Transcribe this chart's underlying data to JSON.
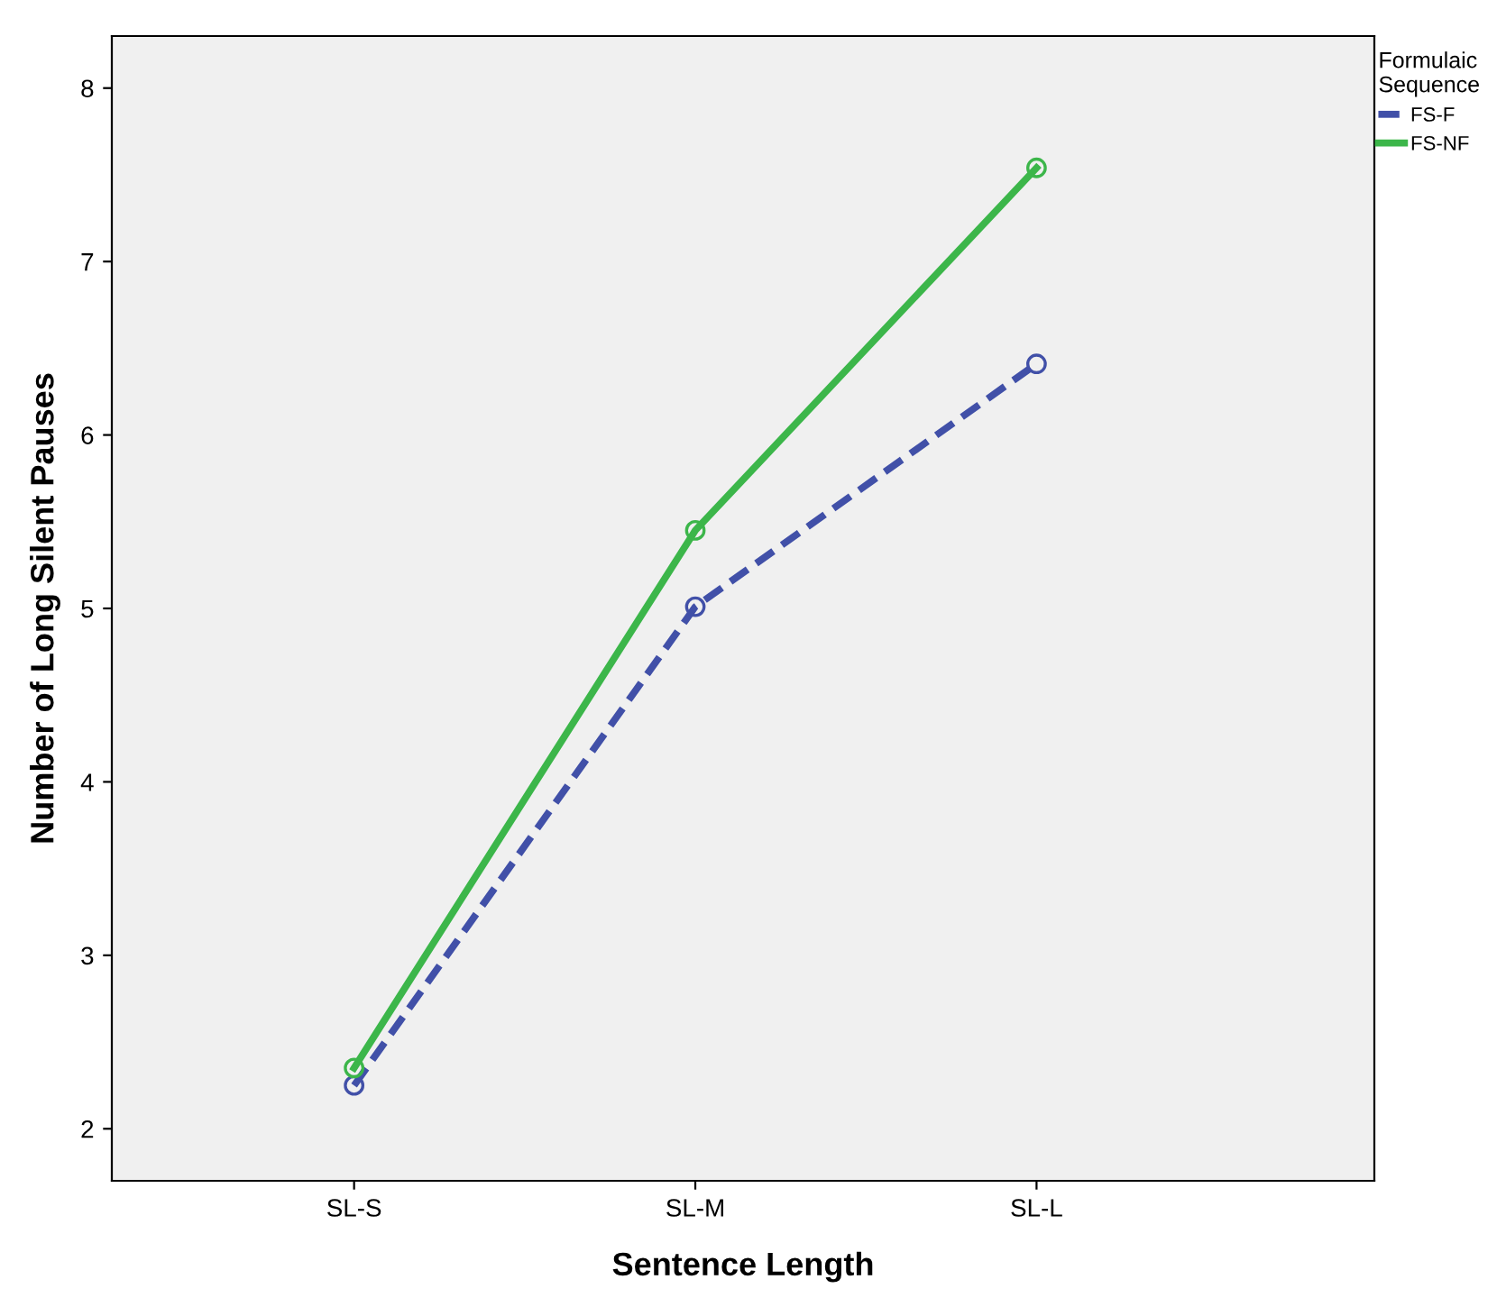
{
  "chart_data": {
    "type": "line",
    "xlabel": "Sentence Length",
    "ylabel": "Number of Long Silent Pauses",
    "legend_title": "Formulaic\nSequence",
    "categories": [
      "SL-S",
      "SL-M",
      "SL-L"
    ],
    "series": [
      {
        "name": "FS-F",
        "color": "#4150a8",
        "values": [
          2.25,
          5.01,
          6.41
        ],
        "line_style": "dashed"
      },
      {
        "name": "FS-NF",
        "color": "#3cb64a",
        "values": [
          2.35,
          5.45,
          7.54
        ],
        "line_style": "solid"
      }
    ],
    "ylim": [
      1.7,
      8.3
    ],
    "yticks": [
      2,
      3,
      4,
      5,
      6,
      7,
      8
    ],
    "marker": "circle",
    "grid": false,
    "legend": "top right"
  }
}
